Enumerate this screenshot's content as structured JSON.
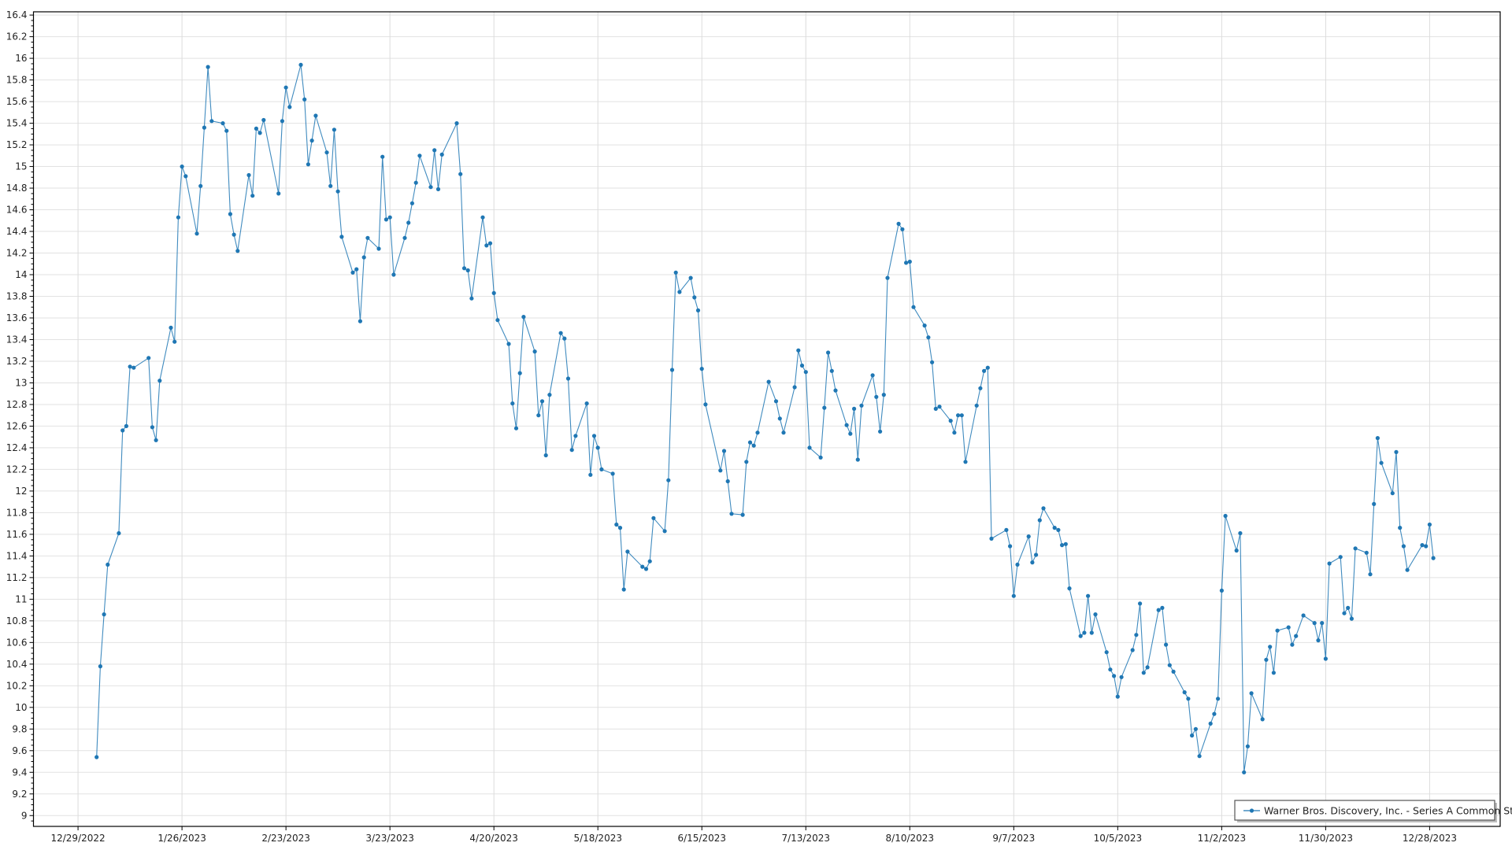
{
  "chart_data": {
    "type": "line",
    "title": "",
    "xlabel": "",
    "ylabel": "",
    "xlim": [
      "2022-12-17",
      "2024-01-16"
    ],
    "ylim": [
      8.9,
      16.43
    ],
    "x_ticks": [
      "12/29/2022",
      "1/26/2023",
      "2/23/2023",
      "3/23/2023",
      "4/20/2023",
      "5/18/2023",
      "6/15/2023",
      "7/13/2023",
      "8/10/2023",
      "9/7/2023",
      "10/5/2023",
      "11/2/2023",
      "11/30/2023",
      "12/28/2023"
    ],
    "x_tick_dates": [
      "2022-12-29",
      "2023-01-26",
      "2023-02-23",
      "2023-03-23",
      "2023-04-20",
      "2023-05-18",
      "2023-06-15",
      "2023-07-13",
      "2023-08-10",
      "2023-09-07",
      "2023-10-05",
      "2023-11-02",
      "2023-11-30",
      "2023-12-28"
    ],
    "y_ticks": [
      "9",
      "9.2",
      "9.4",
      "9.6",
      "9.8",
      "10",
      "10.2",
      "10.4",
      "10.6",
      "10.8",
      "11",
      "11.2",
      "11.4",
      "11.6",
      "11.8",
      "12",
      "12.2",
      "12.4",
      "12.6",
      "12.8",
      "13",
      "13.2",
      "13.4",
      "13.6",
      "13.8",
      "14",
      "14.2",
      "14.4",
      "14.6",
      "14.8",
      "15",
      "15.2",
      "15.4",
      "15.6",
      "15.8",
      "16",
      "16.2",
      "16.4"
    ],
    "grid": true,
    "legend_placement": "bottom-right",
    "series": [
      {
        "name": "Warner Bros. Discovery, Inc. - Series A Common Stock",
        "color": "#1f77b4",
        "marker": "circle",
        "x": [
          "2023-01-03",
          "2023-01-04",
          "2023-01-05",
          "2023-01-06",
          "2023-01-09",
          "2023-01-10",
          "2023-01-11",
          "2023-01-12",
          "2023-01-13",
          "2023-01-17",
          "2023-01-18",
          "2023-01-19",
          "2023-01-20",
          "2023-01-23",
          "2023-01-24",
          "2023-01-25",
          "2023-01-26",
          "2023-01-27",
          "2023-01-30",
          "2023-01-31",
          "2023-02-01",
          "2023-02-02",
          "2023-02-03",
          "2023-02-06",
          "2023-02-07",
          "2023-02-08",
          "2023-02-09",
          "2023-02-10",
          "2023-02-13",
          "2023-02-14",
          "2023-02-15",
          "2023-02-16",
          "2023-02-17",
          "2023-02-21",
          "2023-02-22",
          "2023-02-23",
          "2023-02-24",
          "2023-02-27",
          "2023-02-28",
          "2023-03-01",
          "2023-03-02",
          "2023-03-03",
          "2023-03-06",
          "2023-03-07",
          "2023-03-08",
          "2023-03-09",
          "2023-03-10",
          "2023-03-13",
          "2023-03-14",
          "2023-03-15",
          "2023-03-16",
          "2023-03-17",
          "2023-03-20",
          "2023-03-21",
          "2023-03-22",
          "2023-03-23",
          "2023-03-24",
          "2023-03-27",
          "2023-03-28",
          "2023-03-29",
          "2023-03-30",
          "2023-03-31",
          "2023-04-03",
          "2023-04-04",
          "2023-04-05",
          "2023-04-06",
          "2023-04-10",
          "2023-04-11",
          "2023-04-12",
          "2023-04-13",
          "2023-04-14",
          "2023-04-17",
          "2023-04-18",
          "2023-04-19",
          "2023-04-20",
          "2023-04-21",
          "2023-04-24",
          "2023-04-25",
          "2023-04-26",
          "2023-04-27",
          "2023-04-28",
          "2023-05-01",
          "2023-05-02",
          "2023-05-03",
          "2023-05-04",
          "2023-05-05",
          "2023-05-08",
          "2023-05-09",
          "2023-05-10",
          "2023-05-11",
          "2023-05-12",
          "2023-05-15",
          "2023-05-16",
          "2023-05-17",
          "2023-05-18",
          "2023-05-19",
          "2023-05-22",
          "2023-05-23",
          "2023-05-24",
          "2023-05-25",
          "2023-05-26",
          "2023-05-30",
          "2023-05-31",
          "2023-06-01",
          "2023-06-02",
          "2023-06-05",
          "2023-06-06",
          "2023-06-07",
          "2023-06-08",
          "2023-06-09",
          "2023-06-12",
          "2023-06-13",
          "2023-06-14",
          "2023-06-15",
          "2023-06-16",
          "2023-06-20",
          "2023-06-21",
          "2023-06-22",
          "2023-06-23",
          "2023-06-26",
          "2023-06-27",
          "2023-06-28",
          "2023-06-29",
          "2023-06-30",
          "2023-07-03",
          "2023-07-05",
          "2023-07-06",
          "2023-07-07",
          "2023-07-10",
          "2023-07-11",
          "2023-07-12",
          "2023-07-13",
          "2023-07-14",
          "2023-07-17",
          "2023-07-18",
          "2023-07-19",
          "2023-07-20",
          "2023-07-21",
          "2023-07-24",
          "2023-07-25",
          "2023-07-26",
          "2023-07-27",
          "2023-07-28",
          "2023-07-31",
          "2023-08-01",
          "2023-08-02",
          "2023-08-03",
          "2023-08-04",
          "2023-08-07",
          "2023-08-08",
          "2023-08-09",
          "2023-08-10",
          "2023-08-11",
          "2023-08-14",
          "2023-08-15",
          "2023-08-16",
          "2023-08-17",
          "2023-08-18",
          "2023-08-21",
          "2023-08-22",
          "2023-08-23",
          "2023-08-24",
          "2023-08-25",
          "2023-08-28",
          "2023-08-29",
          "2023-08-30",
          "2023-08-31",
          "2023-09-01",
          "2023-09-05",
          "2023-09-06",
          "2023-09-07",
          "2023-09-08",
          "2023-09-11",
          "2023-09-12",
          "2023-09-13",
          "2023-09-14",
          "2023-09-15",
          "2023-09-18",
          "2023-09-19",
          "2023-09-20",
          "2023-09-21",
          "2023-09-22",
          "2023-09-25",
          "2023-09-26",
          "2023-09-27",
          "2023-09-28",
          "2023-09-29",
          "2023-10-02",
          "2023-10-03",
          "2023-10-04",
          "2023-10-05",
          "2023-10-06",
          "2023-10-09",
          "2023-10-10",
          "2023-10-11",
          "2023-10-12",
          "2023-10-13",
          "2023-10-16",
          "2023-10-17",
          "2023-10-18",
          "2023-10-19",
          "2023-10-20",
          "2023-10-23",
          "2023-10-24",
          "2023-10-25",
          "2023-10-26",
          "2023-10-27",
          "2023-10-30",
          "2023-10-31",
          "2023-11-01",
          "2023-11-02",
          "2023-11-03",
          "2023-11-06",
          "2023-11-07",
          "2023-11-08",
          "2023-11-09",
          "2023-11-10",
          "2023-11-13",
          "2023-11-14",
          "2023-11-15",
          "2023-11-16",
          "2023-11-17",
          "2023-11-20",
          "2023-11-21",
          "2023-11-22",
          "2023-11-24",
          "2023-11-27",
          "2023-11-28",
          "2023-11-29",
          "2023-11-30",
          "2023-12-01",
          "2023-12-04",
          "2023-12-05",
          "2023-12-06",
          "2023-12-07",
          "2023-12-08",
          "2023-12-11",
          "2023-12-12",
          "2023-12-13",
          "2023-12-14",
          "2023-12-15",
          "2023-12-18",
          "2023-12-19",
          "2023-12-20",
          "2023-12-21",
          "2023-12-22",
          "2023-12-26",
          "2023-12-27",
          "2023-12-28",
          "2023-12-29"
        ],
        "values": [
          9.54,
          10.38,
          10.86,
          11.32,
          11.61,
          12.56,
          12.6,
          13.15,
          13.14,
          13.23,
          12.59,
          12.47,
          13.02,
          13.51,
          13.38,
          14.53,
          15.0,
          14.91,
          14.38,
          14.82,
          15.36,
          15.92,
          15.42,
          15.4,
          15.33,
          14.56,
          14.37,
          14.22,
          14.92,
          14.73,
          15.35,
          15.31,
          15.43,
          14.75,
          15.42,
          15.73,
          15.55,
          15.94,
          15.62,
          15.02,
          15.24,
          15.47,
          15.13,
          14.82,
          15.34,
          14.77,
          14.35,
          14.02,
          14.05,
          13.57,
          14.16,
          14.34,
          14.24,
          15.09,
          14.51,
          14.53,
          14.0,
          14.34,
          14.48,
          14.66,
          14.85,
          15.1,
          14.81,
          15.15,
          14.79,
          15.11,
          15.4,
          14.93,
          14.06,
          14.04,
          13.78,
          14.53,
          14.27,
          14.29,
          13.83,
          13.58,
          13.36,
          12.81,
          12.58,
          13.09,
          13.61,
          13.29,
          12.7,
          12.83,
          12.33,
          12.89,
          13.46,
          13.41,
          13.04,
          12.38,
          12.51,
          12.81,
          12.15,
          12.51,
          12.4,
          12.2,
          12.16,
          11.69,
          11.66,
          11.09,
          11.44,
          11.3,
          11.28,
          11.35,
          11.75,
          11.63,
          12.1,
          13.12,
          14.02,
          13.84,
          13.97,
          13.79,
          13.67,
          13.13,
          12.8,
          12.19,
          12.37,
          12.09,
          11.79,
          11.78,
          12.27,
          12.45,
          12.42,
          12.54,
          13.01,
          12.83,
          12.67,
          12.54,
          12.96,
          13.3,
          13.16,
          13.1,
          12.4,
          12.31,
          12.77,
          13.28,
          13.11,
          12.93,
          12.61,
          12.53,
          12.76,
          12.29,
          12.79,
          13.07,
          12.87,
          12.55,
          12.89,
          13.97,
          14.47,
          14.42,
          14.11,
          14.12,
          13.7,
          13.53,
          13.42,
          13.19,
          12.76,
          12.78,
          12.65,
          12.54,
          12.7,
          12.7,
          12.27,
          12.79,
          12.95,
          13.11,
          13.14,
          11.56,
          11.64,
          11.49,
          11.03,
          11.32,
          11.58,
          11.34,
          11.41,
          11.73,
          11.84,
          11.66,
          11.64,
          11.5,
          11.51,
          11.1,
          10.66,
          10.69,
          11.03,
          10.69,
          10.86,
          10.51,
          10.35,
          10.29,
          10.1,
          10.28,
          10.53,
          10.67,
          10.96,
          10.32,
          10.37,
          10.9,
          10.92,
          10.58,
          10.39,
          10.33,
          10.14,
          10.08,
          9.74,
          9.8,
          9.55,
          9.85,
          9.94,
          10.08,
          11.08,
          11.77,
          11.45,
          11.61,
          9.4,
          9.64,
          10.13,
          9.89,
          10.44,
          10.56,
          10.32,
          10.71,
          10.74,
          10.58,
          10.66,
          10.85,
          10.78,
          10.62,
          10.78,
          10.45,
          11.33,
          11.39,
          10.87,
          10.92,
          10.82,
          11.47,
          11.43,
          11.23,
          11.88,
          12.49,
          12.26,
          11.98,
          12.36,
          11.66,
          11.49,
          11.27,
          11.5,
          11.49,
          11.69,
          11.38
        ]
      }
    ]
  }
}
